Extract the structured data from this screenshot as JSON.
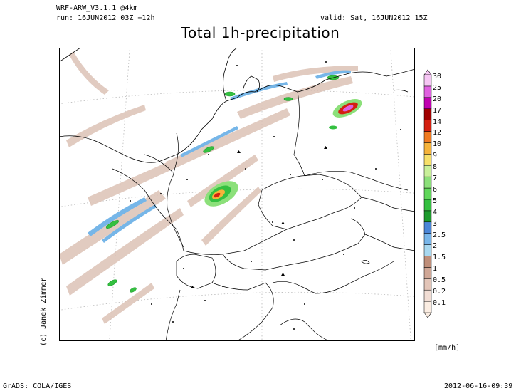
{
  "header": {
    "model": "WRF-ARW_V3.1.1 @4km",
    "run": "run: 16JUN2012 03Z +12h",
    "valid": "valid: Sat, 16JUN2012 15Z"
  },
  "title": "Total 1h-precipitation",
  "credit": "(c) Janek Zimmer",
  "footer": {
    "left": "GrADS: COLA/IGES",
    "right": "2012-06-16-09:39"
  },
  "colorbar": {
    "unit": "[mm/h]",
    "levels": [
      {
        "label": "0.1",
        "color": "#fbede2"
      },
      {
        "label": "0.2",
        "color": "#f1ddd4"
      },
      {
        "label": "0.5",
        "color": "#e3c5b8"
      },
      {
        "label": "1",
        "color": "#d0a796"
      },
      {
        "label": "1.5",
        "color": "#bf8e79"
      },
      {
        "label": "2",
        "color": "#a8d8f0"
      },
      {
        "label": "2.5",
        "color": "#78b6ea"
      },
      {
        "label": "3",
        "color": "#4a86d8"
      },
      {
        "label": "4",
        "color": "#1d9b2c"
      },
      {
        "label": "5",
        "color": "#34c040"
      },
      {
        "label": "6",
        "color": "#60d75a"
      },
      {
        "label": "7",
        "color": "#8ce07a"
      },
      {
        "label": "8",
        "color": "#c9f09a"
      },
      {
        "label": "9",
        "color": "#f7e06a"
      },
      {
        "label": "10",
        "color": "#f5b33a"
      },
      {
        "label": "12",
        "color": "#f07a20"
      },
      {
        "label": "14",
        "color": "#d42010"
      },
      {
        "label": "17",
        "color": "#a00000"
      },
      {
        "label": "20",
        "color": "#c000b0"
      },
      {
        "label": "25",
        "color": "#e060e0"
      },
      {
        "label": "30",
        "color": "#f6c6f4"
      }
    ]
  }
}
